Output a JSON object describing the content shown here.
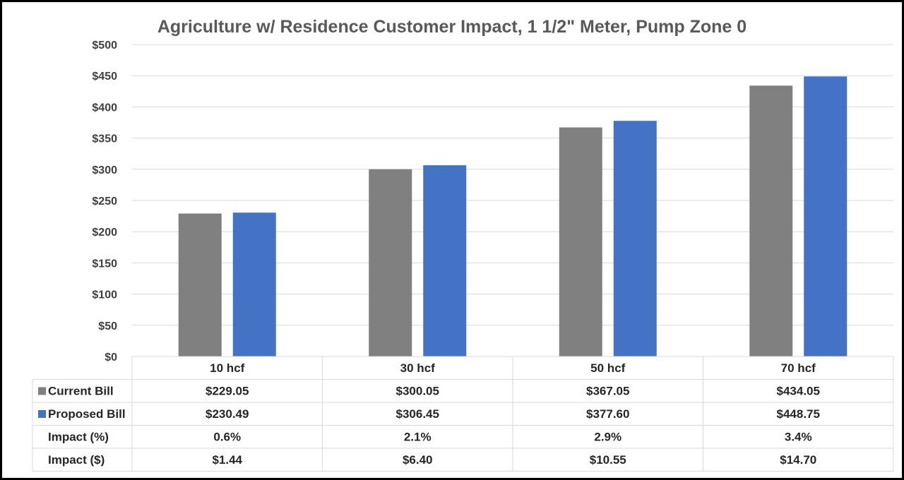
{
  "chart_data": {
    "type": "bar",
    "title": "Agriculture w/ Residence Customer Impact, 1 1/2\" Meter, Pump Zone 0",
    "categories": [
      "10  hcf",
      "30  hcf",
      "50  hcf",
      "70  hcf"
    ],
    "series": [
      {
        "name": "Current Bill",
        "values": [
          229.05,
          300.05,
          367.05,
          434.05
        ],
        "color": "#808080"
      },
      {
        "name": "Proposed Bill",
        "values": [
          230.49,
          306.45,
          377.6,
          448.75
        ],
        "color": "#4472C4"
      }
    ],
    "ylim": [
      0,
      500
    ],
    "y_ticks": [
      "$0",
      "$50",
      "$100",
      "$150",
      "$200",
      "$250",
      "$300",
      "$350",
      "$400",
      "$450",
      "$500"
    ],
    "grid": true,
    "legend": "data-table",
    "data_table": {
      "rows": [
        {
          "label": "Current Bill",
          "key": "current",
          "values": [
            "$229.05",
            "$300.05",
            "$367.05",
            "$434.05"
          ]
        },
        {
          "label": "Proposed Bill",
          "key": "proposed",
          "values": [
            "$230.49",
            "$306.45",
            "$377.60",
            "$448.75"
          ]
        },
        {
          "label": "Impact (%)",
          "key": "impact-pct",
          "values": [
            "0.6%",
            "2.1%",
            "2.9%",
            "3.4%"
          ]
        },
        {
          "label": "Impact ($)",
          "key": "impact-dollar",
          "values": [
            "$1.44",
            "$6.40",
            "$10.55",
            "$14.70"
          ]
        }
      ]
    }
  }
}
